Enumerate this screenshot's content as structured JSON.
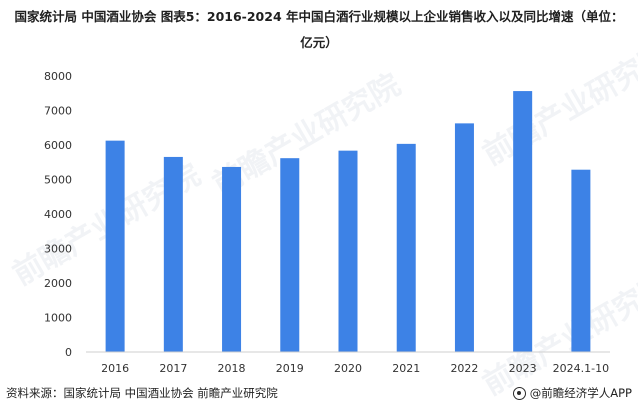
{
  "title": {
    "line1": "国家统计局  中国酒业协会  图表5：2016-2024 年中国白酒行业规模以上企业销售收入以及同比增速（单位：",
    "line2": "亿元）"
  },
  "chart_data": {
    "type": "bar",
    "categories": [
      "2016",
      "2017",
      "2018",
      "2019",
      "2020",
      "2021",
      "2022",
      "2023",
      "2024.1-10"
    ],
    "values": [
      6126,
      5654,
      5364,
      5618,
      5836,
      6033,
      6627,
      7563,
      5284
    ],
    "ylim": [
      0,
      8000
    ],
    "yticks": [
      0,
      1000,
      2000,
      3000,
      4000,
      5000,
      6000,
      7000,
      8000
    ],
    "grid": false,
    "bar_color": "#3d82e6"
  },
  "footer": {
    "source": "资料来源：国家统计局 中国酒业协会 前瞻产业研究院",
    "brand": "@前瞻经济学人APP"
  },
  "watermark": {
    "text": "前瞻产业研究院"
  }
}
